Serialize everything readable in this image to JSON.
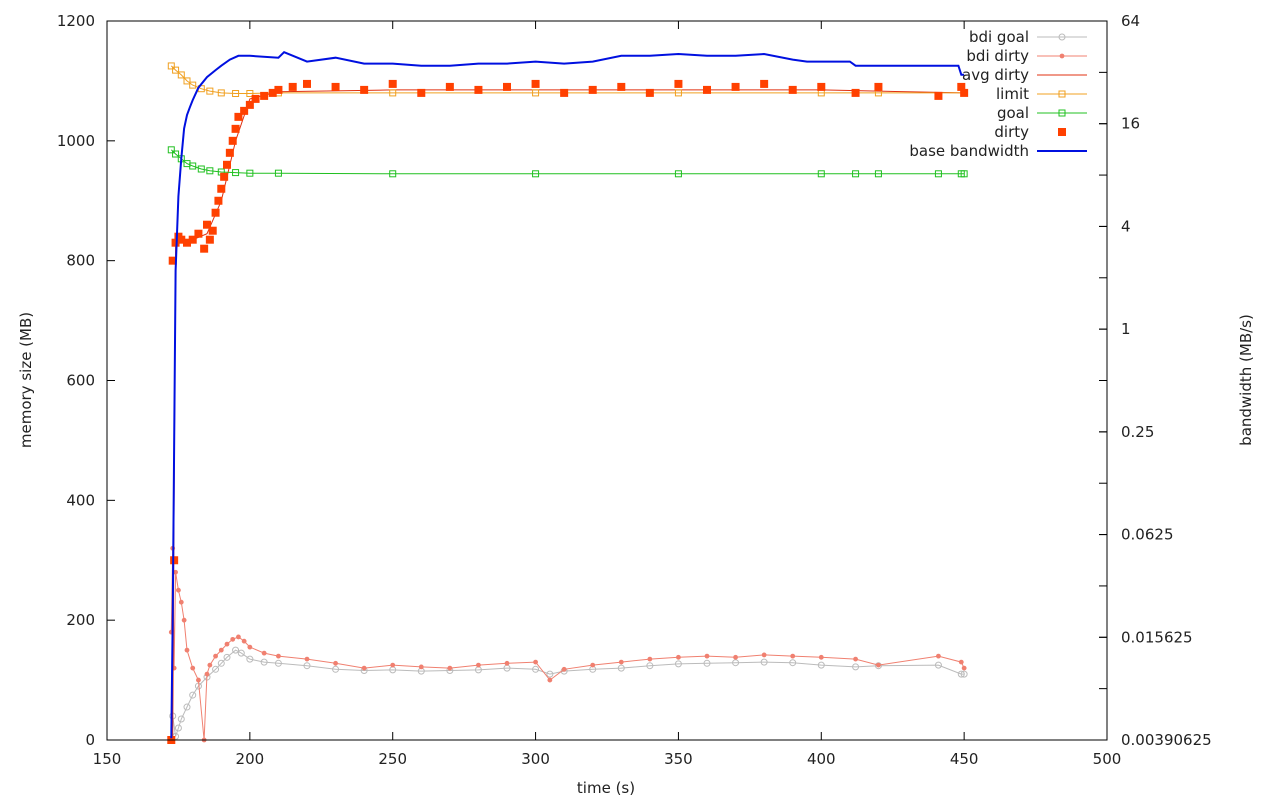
{
  "chart_data": {
    "type": "line",
    "title": "",
    "xlabel": "time (s)",
    "ylabel": "memory size (MB)",
    "y2label": "bandwidth (MB/s)",
    "xlim": [
      150,
      500
    ],
    "ylim": [
      0,
      1200
    ],
    "y2lim": [
      0.00390625,
      64
    ],
    "y2_scale": "log2",
    "x_ticks": [
      150,
      200,
      250,
      300,
      350,
      400,
      450,
      500
    ],
    "y_ticks": [
      0,
      200,
      400,
      600,
      800,
      1000,
      1200
    ],
    "y2_ticks": [
      0.00390625,
      0.015625,
      0.0625,
      0.25,
      1,
      4,
      16,
      64
    ],
    "y2_tick_labels": [
      "0.00390625",
      "0.015625",
      "0.0625",
      "0.25",
      "1",
      "4",
      "16",
      "64"
    ],
    "grid": false,
    "legend_position": "top-right",
    "series": [
      {
        "name": "bdi goal",
        "axis": "y",
        "color": "#bbbbbb",
        "marker": "open-circle",
        "x": [
          172.5,
          173,
          174,
          175,
          176,
          178,
          180,
          182,
          185,
          188,
          190,
          192,
          195,
          197,
          200,
          205,
          210,
          220,
          230,
          240,
          250,
          260,
          270,
          280,
          290,
          300,
          305,
          310,
          320,
          330,
          340,
          350,
          360,
          370,
          380,
          390,
          400,
          412,
          420,
          441,
          449,
          450
        ],
        "y": [
          0,
          40,
          6,
          20,
          35,
          55,
          75,
          90,
          105,
          118,
          128,
          138,
          150,
          145,
          135,
          130,
          128,
          124,
          118,
          116,
          117,
          115,
          116,
          117,
          120,
          118,
          110,
          115,
          118,
          120,
          124,
          127,
          128,
          129,
          130,
          129,
          125,
          122,
          124,
          125,
          110,
          110
        ]
      },
      {
        "name": "bdi dirty",
        "axis": "y",
        "color": "#f08070",
        "marker": "small-dot",
        "x": [
          172.5,
          173,
          173.5,
          174,
          175,
          176,
          177,
          178,
          180,
          182,
          184,
          185,
          186,
          188,
          190,
          192,
          194,
          196,
          198,
          200,
          205,
          210,
          220,
          230,
          240,
          250,
          260,
          270,
          280,
          290,
          300,
          305,
          310,
          320,
          330,
          340,
          350,
          360,
          370,
          380,
          390,
          400,
          412,
          420,
          441,
          449,
          450
        ],
        "y": [
          180,
          320,
          120,
          280,
          250,
          230,
          200,
          150,
          120,
          100,
          0,
          110,
          125,
          140,
          150,
          160,
          168,
          172,
          165,
          155,
          145,
          140,
          135,
          128,
          120,
          125,
          122,
          120,
          125,
          128,
          130,
          100,
          118,
          125,
          130,
          135,
          138,
          140,
          138,
          142,
          140,
          138,
          135,
          125,
          140,
          130,
          120
        ]
      },
      {
        "name": "avg dirty",
        "axis": "y",
        "color": "#e03010",
        "marker": "none",
        "x": [
          173,
          174,
          176,
          180,
          185,
          190,
          195,
          200,
          210,
          250,
          300,
          350,
          400,
          450
        ],
        "y": [
          0,
          830,
          835,
          835,
          845,
          900,
          1000,
          1070,
          1082,
          1085,
          1085,
          1085,
          1085,
          1080
        ]
      },
      {
        "name": "limit",
        "axis": "y",
        "color": "#f0a020",
        "marker": "open-square",
        "x": [
          172.5,
          174,
          176,
          178,
          180,
          183,
          186,
          190,
          195,
          200,
          210,
          250,
          300,
          350,
          400,
          420,
          450
        ],
        "y": [
          1125,
          1118,
          1110,
          1100,
          1093,
          1087,
          1083,
          1080,
          1079,
          1079,
          1080,
          1080,
          1080,
          1080,
          1080,
          1080,
          1080
        ]
      },
      {
        "name": "goal",
        "axis": "y",
        "color": "#20c020",
        "marker": "open-square",
        "x": [
          172.5,
          174,
          176,
          178,
          180,
          183,
          186,
          190,
          195,
          200,
          210,
          250,
          300,
          350,
          400,
          412,
          420,
          441,
          449,
          450
        ],
        "y": [
          985,
          978,
          970,
          962,
          958,
          953,
          950,
          948,
          947,
          946,
          946,
          945,
          945,
          945,
          945,
          945,
          945,
          945,
          945,
          945
        ]
      },
      {
        "name": "dirty",
        "axis": "y",
        "color": "#ff4000",
        "marker": "filled-square",
        "x": [
          172.5,
          173,
          173.5,
          174,
          175,
          176,
          178,
          180,
          182,
          184,
          185,
          186,
          187,
          188,
          189,
          190,
          191,
          192,
          193,
          194,
          195,
          196,
          198,
          200,
          202,
          205,
          208,
          210,
          215,
          220,
          230,
          240,
          250,
          260,
          270,
          280,
          290,
          300,
          310,
          320,
          330,
          340,
          350,
          360,
          370,
          380,
          390,
          400,
          412,
          420,
          441,
          449,
          450
        ],
        "y": [
          0,
          800,
          300,
          830,
          840,
          835,
          830,
          835,
          845,
          820,
          860,
          835,
          850,
          880,
          900,
          920,
          940,
          960,
          980,
          1000,
          1020,
          1040,
          1050,
          1060,
          1070,
          1075,
          1080,
          1085,
          1090,
          1095,
          1090,
          1085,
          1095,
          1080,
          1090,
          1085,
          1090,
          1095,
          1080,
          1085,
          1090,
          1080,
          1095,
          1085,
          1090,
          1095,
          1085,
          1090,
          1080,
          1090,
          1075,
          1090,
          1080
        ]
      },
      {
        "name": "base bandwidth",
        "axis": "y2",
        "color": "#0010e0",
        "marker": "none",
        "x": [
          172.5,
          173,
          174,
          175,
          176,
          177,
          178,
          179,
          180,
          182,
          185,
          188,
          190,
          193,
          196,
          200,
          210,
          212,
          220,
          230,
          240,
          250,
          260,
          270,
          280,
          290,
          300,
          310,
          320,
          330,
          340,
          350,
          360,
          370,
          380,
          390,
          395,
          400,
          410,
          412,
          420,
          441,
          448,
          449,
          450
        ],
        "y": [
          0.004,
          0.02,
          2.2,
          6,
          10,
          15,
          18,
          20,
          22,
          26,
          30,
          33,
          35,
          38,
          40,
          40,
          39,
          42,
          37,
          39,
          36,
          36,
          35,
          35,
          36,
          36,
          37,
          36,
          37,
          40,
          40,
          41,
          40,
          40,
          41,
          38,
          37,
          37,
          37,
          35,
          35,
          35,
          35,
          31,
          31
        ]
      }
    ]
  }
}
